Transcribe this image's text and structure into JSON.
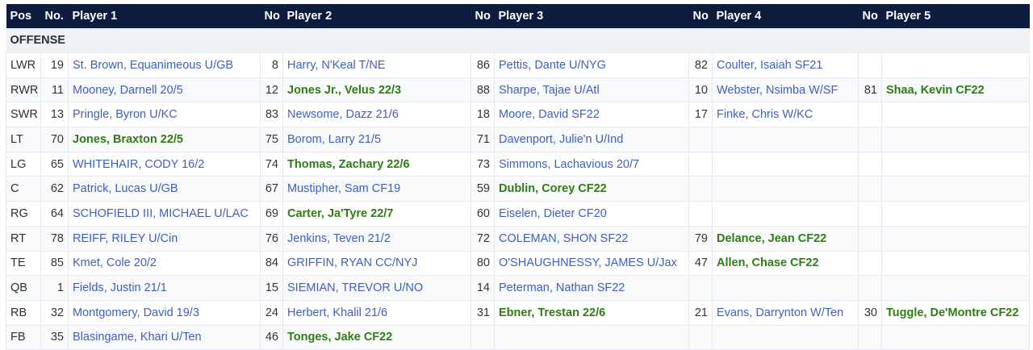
{
  "header": {
    "pos": "Pos",
    "no1": "No.",
    "p1": "Player 1",
    "no2": "No",
    "p2": "Player 2",
    "no3": "No",
    "p3": "Player 3",
    "no4": "No",
    "p4": "Player 4",
    "no5": "No",
    "p5": "Player 5"
  },
  "section": "OFFENSE",
  "colors": {
    "header_bg": "#0e1d3f",
    "link": "#3d5fc4",
    "highlight": "#2e7d12"
  },
  "rows": [
    {
      "pos": "LWR",
      "players": [
        {
          "no": "19",
          "name": "St. Brown, Equanimeous U/GB"
        },
        {
          "no": "8",
          "name": "Harry, N'Keal T/NE"
        },
        {
          "no": "86",
          "name": "Pettis, Dante U/NYG"
        },
        {
          "no": "82",
          "name": "Coulter, Isaiah SF21"
        }
      ]
    },
    {
      "pos": "RWR",
      "players": [
        {
          "no": "11",
          "name": "Mooney, Darnell 20/5"
        },
        {
          "no": "12",
          "name": "Jones Jr., Velus 22/3",
          "new": true
        },
        {
          "no": "88",
          "name": "Sharpe, Tajae U/Atl"
        },
        {
          "no": "10",
          "name": "Webster, Nsimba W/SF"
        },
        {
          "no": "81",
          "name": "Shaa, Kevin CF22",
          "new": true
        }
      ]
    },
    {
      "pos": "SWR",
      "players": [
        {
          "no": "13",
          "name": "Pringle, Byron U/KC"
        },
        {
          "no": "83",
          "name": "Newsome, Dazz 21/6"
        },
        {
          "no": "18",
          "name": "Moore, David SF22"
        },
        {
          "no": "17",
          "name": "Finke, Chris W/KC"
        }
      ]
    },
    {
      "pos": "LT",
      "players": [
        {
          "no": "70",
          "name": "Jones, Braxton 22/5",
          "new": true
        },
        {
          "no": "75",
          "name": "Borom, Larry 21/5"
        },
        {
          "no": "71",
          "name": "Davenport, Julie'n U/Ind"
        }
      ]
    },
    {
      "pos": "LG",
      "players": [
        {
          "no": "65",
          "name": "WHITEHAIR, CODY 16/2"
        },
        {
          "no": "74",
          "name": "Thomas, Zachary 22/6",
          "new": true
        },
        {
          "no": "73",
          "name": "Simmons, Lachavious 20/7"
        }
      ]
    },
    {
      "pos": "C",
      "players": [
        {
          "no": "62",
          "name": "Patrick, Lucas U/GB"
        },
        {
          "no": "67",
          "name": "Mustipher, Sam CF19"
        },
        {
          "no": "59",
          "name": "Dublin, Corey CF22",
          "new": true
        }
      ]
    },
    {
      "pos": "RG",
      "players": [
        {
          "no": "64",
          "name": "SCHOFIELD III, MICHAEL U/LAC"
        },
        {
          "no": "69",
          "name": "Carter, Ja'Tyre 22/7",
          "new": true
        },
        {
          "no": "60",
          "name": "Eiselen, Dieter CF20"
        }
      ]
    },
    {
      "pos": "RT",
      "players": [
        {
          "no": "78",
          "name": "REIFF, RILEY U/Cin"
        },
        {
          "no": "76",
          "name": "Jenkins, Teven 21/2"
        },
        {
          "no": "72",
          "name": "COLEMAN, SHON SF22"
        },
        {
          "no": "79",
          "name": "Delance, Jean CF22",
          "new": true
        }
      ]
    },
    {
      "pos": "TE",
      "players": [
        {
          "no": "85",
          "name": "Kmet, Cole 20/2"
        },
        {
          "no": "84",
          "name": "GRIFFIN, RYAN CC/NYJ"
        },
        {
          "no": "80",
          "name": "O'SHAUGHNESSY, JAMES U/Jax"
        },
        {
          "no": "47",
          "name": "Allen, Chase CF22",
          "new": true
        }
      ]
    },
    {
      "pos": "QB",
      "players": [
        {
          "no": "1",
          "name": "Fields, Justin 21/1"
        },
        {
          "no": "15",
          "name": "SIEMIAN, TREVOR U/NO"
        },
        {
          "no": "14",
          "name": "Peterman, Nathan SF22"
        }
      ]
    },
    {
      "pos": "RB",
      "players": [
        {
          "no": "32",
          "name": "Montgomery, David 19/3"
        },
        {
          "no": "24",
          "name": "Herbert, Khalil 21/6"
        },
        {
          "no": "31",
          "name": "Ebner, Trestan 22/6",
          "new": true
        },
        {
          "no": "21",
          "name": "Evans, Darrynton W/Ten"
        },
        {
          "no": "30",
          "name": "Tuggle, De'Montre CF22",
          "new": true
        }
      ]
    },
    {
      "pos": "FB",
      "players": [
        {
          "no": "35",
          "name": "Blasingame, Khari U/Ten"
        },
        {
          "no": "46",
          "name": "Tonges, Jake CF22",
          "new": true
        }
      ]
    }
  ]
}
